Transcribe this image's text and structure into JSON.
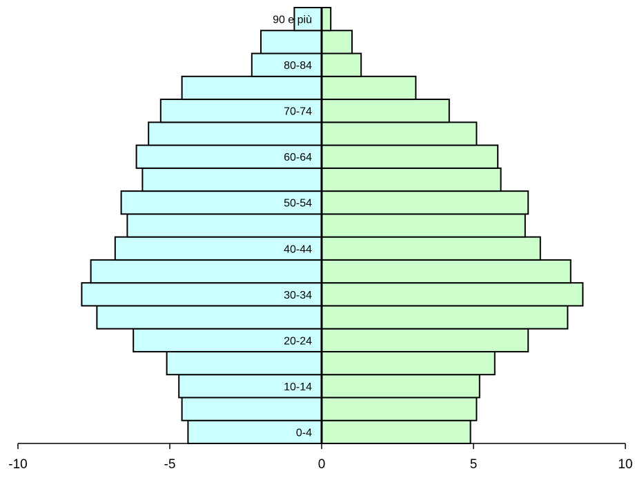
{
  "chart_data": {
    "type": "bar",
    "orientation": "horizontal",
    "categories": [
      "0-4",
      "5-9",
      "10-14",
      "15-19",
      "20-24",
      "25-29",
      "30-34",
      "35-39",
      "40-44",
      "45-49",
      "50-54",
      "55-59",
      "60-64",
      "65-69",
      "70-74",
      "75-79",
      "80-84",
      "85-89",
      "90 e più"
    ],
    "category_labels": [
      "0-4",
      "",
      "10-14",
      "",
      "20-24",
      "",
      "30-34",
      "",
      "40-44",
      "",
      "50-54",
      "",
      "60-64",
      "",
      "70-74",
      "",
      "80-84",
      "",
      "90 e più"
    ],
    "series": [
      {
        "values": [
          -4.4,
          -4.6,
          -4.7,
          -5.1,
          -6.2,
          -7.4,
          -7.9,
          -7.6,
          -6.8,
          -6.4,
          -6.6,
          -5.9,
          -6.1,
          -5.7,
          -5.3,
          -4.6,
          -2.3,
          -2.0,
          -0.9
        ],
        "color": "#ccffff"
      },
      {
        "values": [
          4.9,
          5.1,
          5.2,
          5.7,
          6.8,
          8.1,
          8.6,
          8.2,
          7.2,
          6.7,
          6.8,
          5.9,
          5.8,
          5.1,
          4.2,
          3.1,
          1.3,
          1.0,
          0.3
        ],
        "color": "#ccffcc"
      }
    ],
    "xlim": [
      -10,
      10
    ],
    "x_ticks": [
      -10,
      -5,
      0,
      5,
      10
    ],
    "x_tick_labels": [
      "-10",
      "-5",
      "0",
      "5",
      "10"
    ],
    "title": "",
    "xlabel": "",
    "ylabel": "",
    "grid": false,
    "legend": "none",
    "bar_outline_color": "#000000",
    "axis_color": "#000000"
  }
}
